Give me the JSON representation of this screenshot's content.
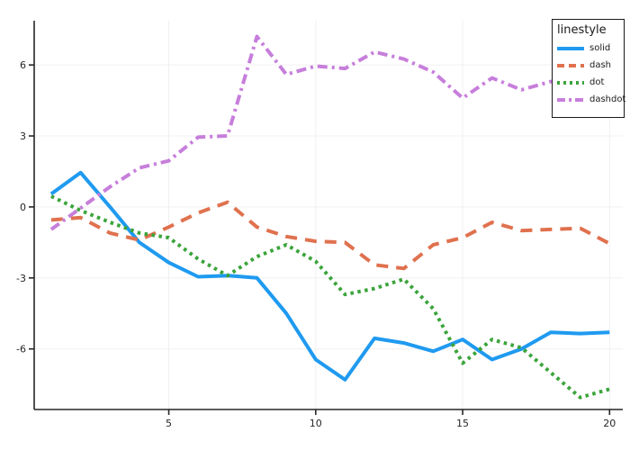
{
  "chart_data": {
    "type": "line",
    "legend_title": "linestyle",
    "title": "",
    "xlabel": "",
    "ylabel": "",
    "xlim": [
      0.42,
      20.45
    ],
    "ylim": [
      -8.56,
      7.87
    ],
    "x_ticks": [
      5,
      10,
      15,
      20
    ],
    "y_ticks": [
      -6,
      -3,
      0,
      3,
      6
    ],
    "grid": true,
    "legend_position": "top-right",
    "x": [
      1,
      2,
      3,
      4,
      5,
      6,
      7,
      8,
      9,
      10,
      11,
      12,
      13,
      14,
      15,
      16,
      17,
      18,
      19,
      20
    ],
    "series": [
      {
        "name": "solid",
        "linestyle": "solid",
        "color": "#1f9af0",
        "values": [
          0.55,
          1.45,
          0.0,
          -1.5,
          -2.35,
          -2.95,
          -2.9,
          -3.0,
          -4.5,
          -6.45,
          -7.3,
          -5.55,
          -5.75,
          -6.1,
          -5.6,
          -6.45,
          -6.0,
          -5.3,
          -5.35,
          -5.3
        ]
      },
      {
        "name": "dash",
        "linestyle": "dash",
        "color": "#e0714e",
        "values": [
          -0.55,
          -0.45,
          -1.1,
          -1.4,
          -0.85,
          -0.25,
          0.2,
          -0.85,
          -1.25,
          -1.45,
          -1.5,
          -2.45,
          -2.6,
          -1.6,
          -1.3,
          -0.65,
          -1.0,
          -0.95,
          -0.9,
          -1.55
        ]
      },
      {
        "name": "dot",
        "linestyle": "dot",
        "color": "#3aa43a",
        "values": [
          0.45,
          -0.15,
          -0.65,
          -1.1,
          -1.3,
          -2.2,
          -2.9,
          -2.1,
          -1.6,
          -2.3,
          -3.7,
          -3.45,
          -3.05,
          -4.3,
          -6.6,
          -5.6,
          -5.95,
          -7.0,
          -8.05,
          -7.7
        ]
      },
      {
        "name": "dashdot",
        "linestyle": "dashdot",
        "color": "#c77edb",
        "values": [
          -0.95,
          -0.05,
          0.85,
          1.65,
          1.95,
          2.95,
          3.0,
          7.2,
          5.6,
          5.95,
          5.85,
          6.55,
          6.25,
          5.7,
          4.6,
          5.45,
          4.95,
          5.3,
          5.3,
          5.2
        ]
      }
    ],
    "styles": {
      "grid_color": "#f0f0f0",
      "spine_color": "#262626",
      "tick_color": "#262626",
      "line_width": 4
    }
  }
}
